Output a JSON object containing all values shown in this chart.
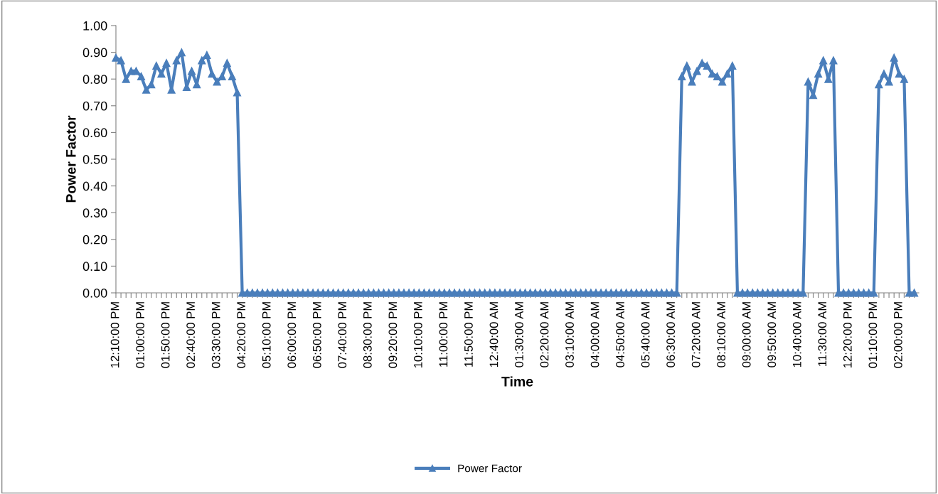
{
  "chart_data": {
    "type": "line",
    "xlabel": "Time",
    "ylabel": "Power Factor",
    "categories": [
      "12:10:00 PM",
      null,
      null,
      null,
      null,
      "01:00:00 PM",
      null,
      null,
      null,
      null,
      "01:50:00 PM",
      null,
      null,
      null,
      null,
      "02:40:00 PM",
      null,
      null,
      null,
      null,
      "03:30:00 PM",
      null,
      null,
      null,
      null,
      "04:20:00 PM",
      null,
      null,
      null,
      null,
      "05:10:00 PM",
      null,
      null,
      null,
      null,
      "06:00:00 PM",
      null,
      null,
      null,
      null,
      "06:50:00 PM",
      null,
      null,
      null,
      null,
      "07:40:00 PM",
      null,
      null,
      null,
      null,
      "08:30:00 PM",
      null,
      null,
      null,
      null,
      "09:20:00 PM",
      null,
      null,
      null,
      null,
      "10:10:00 PM",
      null,
      null,
      null,
      null,
      "11:00:00 PM",
      null,
      null,
      null,
      null,
      "11:50:00 PM",
      null,
      null,
      null,
      null,
      "12:40:00 AM",
      null,
      null,
      null,
      null,
      "01:30:00 AM",
      null,
      null,
      null,
      null,
      "02:20:00 AM",
      null,
      null,
      null,
      null,
      "03:10:00 AM",
      null,
      null,
      null,
      null,
      "04:00:00 AM",
      null,
      null,
      null,
      null,
      "04:50:00 AM",
      null,
      null,
      null,
      null,
      "05:40:00 AM",
      null,
      null,
      null,
      null,
      "06:30:00 AM",
      null,
      null,
      null,
      null,
      "07:20:00 AM",
      null,
      null,
      null,
      null,
      "08:10:00 AM",
      null,
      null,
      null,
      null,
      "09:00:00 AM",
      null,
      null,
      null,
      null,
      "09:50:00 AM",
      null,
      null,
      null,
      null,
      "10:40:00 AM",
      null,
      null,
      null,
      null,
      "11:30:00 AM",
      null,
      null,
      null,
      null,
      "12:20:00 PM",
      null,
      null,
      null,
      null,
      "01:10:00 PM",
      null,
      null,
      null,
      null,
      "02:00:00 PM",
      null,
      null,
      null
    ],
    "series": [
      {
        "name": "Power Factor",
        "color": "#4a7ebb",
        "values": [
          0.88,
          0.87,
          0.8,
          0.83,
          0.83,
          0.81,
          0.76,
          0.78,
          0.85,
          0.82,
          0.86,
          0.76,
          0.87,
          0.9,
          0.77,
          0.83,
          0.78,
          0.87,
          0.89,
          0.82,
          0.79,
          0.81,
          0.86,
          0.81,
          0.75,
          0,
          0,
          0,
          0,
          0,
          0,
          0,
          0,
          0,
          0,
          0,
          0,
          0,
          0,
          0,
          0,
          0,
          0,
          0,
          0,
          0,
          0,
          0,
          0,
          0,
          0,
          0,
          0,
          0,
          0,
          0,
          0,
          0,
          0,
          0,
          0,
          0,
          0,
          0,
          0,
          0,
          0,
          0,
          0,
          0,
          0,
          0,
          0,
          0,
          0,
          0,
          0,
          0,
          0,
          0,
          0,
          0,
          0,
          0,
          0,
          0,
          0,
          0,
          0,
          0,
          0,
          0,
          0,
          0,
          0,
          0,
          0,
          0,
          0,
          0,
          0,
          0,
          0,
          0,
          0,
          0,
          0,
          0,
          0,
          0,
          0,
          0,
          0.81,
          0.85,
          0.79,
          0.83,
          0.86,
          0.85,
          0.82,
          0.81,
          0.79,
          0.82,
          0.85,
          0,
          0,
          0,
          0,
          0,
          0,
          0,
          0,
          0,
          0,
          0,
          0,
          0,
          0,
          0.79,
          0.74,
          0.82,
          0.87,
          0.8,
          0.87,
          0,
          0,
          0,
          0,
          0,
          0,
          0,
          0,
          0.78,
          0.82,
          0.79,
          0.88,
          0.82,
          0.8,
          0,
          0
        ]
      }
    ],
    "ylim": [
      0,
      1
    ],
    "yticks": [
      {
        "value": 0,
        "label": "0.00"
      },
      {
        "value": 0.1,
        "label": "0.10"
      },
      {
        "value": 0.2,
        "label": "0.20"
      },
      {
        "value": 0.3,
        "label": "0.30"
      },
      {
        "value": 0.4,
        "label": "0.40"
      },
      {
        "value": 0.5,
        "label": "0.50"
      },
      {
        "value": 0.6,
        "label": "0.60"
      },
      {
        "value": 0.7,
        "label": "0.70"
      },
      {
        "value": 0.8,
        "label": "0.80"
      },
      {
        "value": 0.9,
        "label": "0.90"
      },
      {
        "value": 1,
        "label": "1.00"
      }
    ],
    "grid": false,
    "legend": "bottom",
    "marker": "triangle",
    "line_style": "solid"
  }
}
